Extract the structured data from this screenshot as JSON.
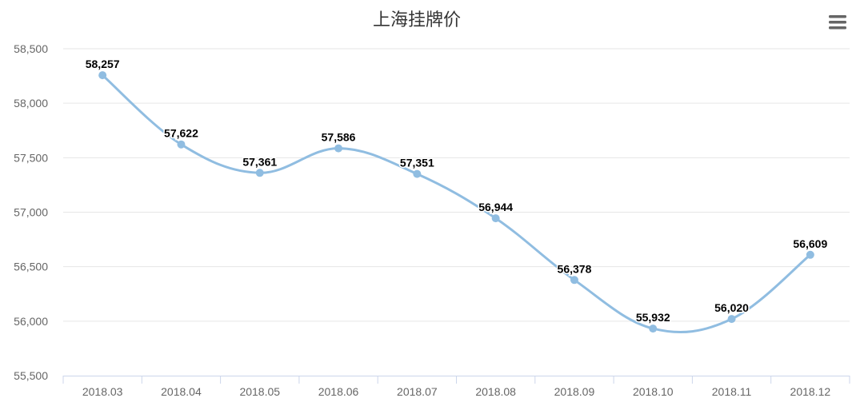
{
  "chart_data": {
    "type": "line",
    "title": "上海挂牌价",
    "xlabel": "",
    "ylabel": "",
    "categories": [
      "2018.03",
      "2018.04",
      "2018.05",
      "2018.06",
      "2018.07",
      "2018.08",
      "2018.09",
      "2018.10",
      "2018.11",
      "2018.12"
    ],
    "values": [
      58257,
      57622,
      57361,
      57586,
      57351,
      56944,
      56378,
      55932,
      56020,
      56609
    ],
    "data_labels": [
      "58,257",
      "57,622",
      "57,361",
      "57,586",
      "57,351",
      "56,944",
      "56,378",
      "55,932",
      "56,020",
      "56,609"
    ],
    "yticks": [
      55500,
      56000,
      56500,
      57000,
      57500,
      58000,
      58500
    ],
    "ytick_labels": [
      "55,500",
      "56,000",
      "56,500",
      "57,000",
      "57,500",
      "58,000",
      "58,500"
    ],
    "ylim": [
      55500,
      58500
    ],
    "grid": true,
    "smooth": true,
    "legend": "none",
    "series_color": "#90bde1"
  },
  "menu": {
    "icon": "hamburger-menu-icon"
  }
}
